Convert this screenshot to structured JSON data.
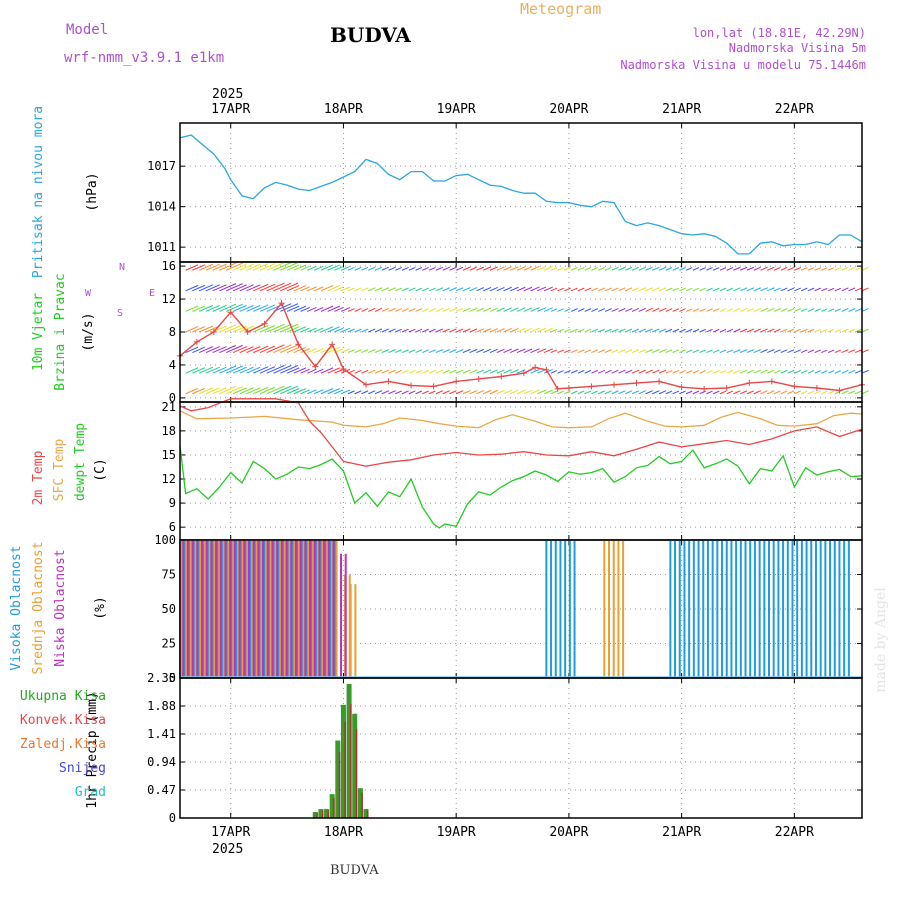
{
  "header": {
    "model_label": "Model",
    "model_name": "wrf-nmm_v3.9.1 e1km",
    "title": "BUDVA",
    "meteogram_label": "Meteogram",
    "lonlat": "lon,lat (18.81E, 42.29N)",
    "altitude": "Nadmorska Visina 5m",
    "model_altitude": "Nadmorska Visina u modelu 75.1446m"
  },
  "footer_label": "BUDVA",
  "made_by": "made by Angel",
  "year_label": "2025",
  "x_axis": {
    "ticks": [
      "17APR",
      "18APR",
      "19APR",
      "20APR",
      "21APR",
      "22APR"
    ],
    "range_days": [
      16.55,
      22.6
    ]
  },
  "colors": {
    "pressure": "#2aa6e6",
    "temp2m": "#e84848",
    "sfc_temp": "#e8a848",
    "dewpt": "#22cc22",
    "high_cloud": "#1f9be0",
    "mid_cloud": "#e8a030",
    "low_cloud": "#c030c0",
    "precip_total": "#3a9a2a",
    "precip_conv": "#b03030",
    "wind_speed": "#e84848"
  },
  "panels": {
    "pressure": {
      "labels": [
        "Pritisak na nivou mora",
        "(hPa)"
      ],
      "label_colors": [
        "#2aa6e6",
        "#000000"
      ],
      "yticks": [
        "1011",
        "1014",
        "1017"
      ]
    },
    "wind": {
      "labels": [
        "10m Vjetar",
        "Brzina i Pravac",
        "(m/s)"
      ],
      "label_colors": [
        "#22cc22",
        "#22cc22",
        "#000000"
      ],
      "yticks": [
        "0",
        "4",
        "8",
        "12",
        "16"
      ],
      "compass": {
        "n": "N",
        "s": "S",
        "e": "E",
        "w": "W"
      }
    },
    "temperature": {
      "labels": [
        "2m Temp",
        "SFC Temp",
        "dewpt Temp",
        "(C)"
      ],
      "label_colors": [
        "#e84848",
        "#e8a848",
        "#22cc22",
        "#000000"
      ],
      "yticks": [
        "6",
        "9",
        "12",
        "15",
        "18",
        "21"
      ]
    },
    "cloud": {
      "labels": [
        "Visoka Oblacnost",
        "Srednja Oblacnost",
        "Niska Oblacnost",
        "(%)"
      ],
      "label_colors": [
        "#1f9be0",
        "#e8a030",
        "#c030c0",
        "#000000"
      ],
      "yticks": [
        "0",
        "25",
        "50",
        "75",
        "100"
      ]
    },
    "precip": {
      "legend": [
        "Ukupna Kisa",
        "Konvek.Kisa",
        "Zaledj.Kisa",
        "Snijeg",
        "Grad"
      ],
      "legend_colors": [
        "#22aa22",
        "#e84848",
        "#e87830",
        "#4444dd",
        "#22c0c0"
      ],
      "ylabel": "1hr Precip (mm)",
      "yticks": [
        "0",
        "0.47",
        "0.94",
        "1.41",
        "1.88",
        "2.35"
      ]
    }
  },
  "chart_data": [
    {
      "type": "line",
      "title": "",
      "ylabel": "(hPa)",
      "ylim": [
        1009.9,
        1020.2
      ],
      "series": [
        {
          "name": "Pritisak na nivou mora",
          "x": [
            16.55,
            16.65,
            16.75,
            16.85,
            16.95,
            17.0,
            17.1,
            17.2,
            17.3,
            17.4,
            17.5,
            17.6,
            17.7,
            17.8,
            17.9,
            18.0,
            18.1,
            18.2,
            18.3,
            18.4,
            18.5,
            18.6,
            18.7,
            18.8,
            18.9,
            19.0,
            19.1,
            19.2,
            19.3,
            19.4,
            19.5,
            19.6,
            19.7,
            19.8,
            19.9,
            20.0,
            20.1,
            20.2,
            20.3,
            20.4,
            20.5,
            20.6,
            20.7,
            20.8,
            20.9,
            21.0,
            21.1,
            21.2,
            21.3,
            21.4,
            21.5,
            21.6,
            21.7,
            21.8,
            21.9,
            22.0,
            22.1,
            22.2,
            22.3,
            22.4,
            22.5,
            22.6
          ],
          "y": [
            1019.1,
            1019.3,
            1018.6,
            1017.9,
            1016.8,
            1016.0,
            1014.8,
            1014.6,
            1015.4,
            1015.8,
            1015.6,
            1015.3,
            1015.2,
            1015.5,
            1015.8,
            1016.2,
            1016.6,
            1017.5,
            1017.2,
            1016.4,
            1016.0,
            1016.6,
            1016.6,
            1015.9,
            1015.9,
            1016.3,
            1016.4,
            1016.0,
            1015.6,
            1015.5,
            1015.2,
            1015.0,
            1015.0,
            1014.4,
            1014.3,
            1014.3,
            1014.1,
            1014.0,
            1014.4,
            1014.3,
            1012.9,
            1012.6,
            1012.8,
            1012.6,
            1012.3,
            1012.0,
            1011.9,
            1012.0,
            1011.8,
            1011.3,
            1010.5,
            1010.5,
            1011.3,
            1011.4,
            1011.1,
            1011.2,
            1011.2,
            1011.4,
            1011.2,
            1011.9,
            1011.9,
            1011.4
          ]
        }
      ]
    },
    {
      "type": "line",
      "title": "",
      "ylabel": "(m/s)",
      "ylim": [
        -0.5,
        16.5
      ],
      "series": [
        {
          "name": "10m Vjetar",
          "x": [
            16.55,
            16.7,
            16.85,
            17.0,
            17.15,
            17.3,
            17.45,
            17.6,
            17.75,
            17.9,
            18.0,
            18.2,
            18.4,
            18.6,
            18.8,
            19.0,
            19.2,
            19.4,
            19.6,
            19.7,
            19.8,
            19.9,
            20.0,
            20.2,
            20.4,
            20.6,
            20.8,
            21.0,
            21.2,
            21.4,
            21.6,
            21.8,
            22.0,
            22.2,
            22.4,
            22.6
          ],
          "y": [
            5.1,
            6.8,
            8.0,
            10.4,
            8.0,
            9.0,
            11.5,
            6.5,
            3.8,
            6.5,
            3.5,
            1.6,
            2.0,
            1.5,
            1.4,
            2.0,
            2.3,
            2.6,
            3.0,
            3.7,
            3.4,
            1.1,
            1.2,
            1.4,
            1.6,
            1.8,
            2.0,
            1.3,
            1.1,
            1.2,
            1.8,
            2.0,
            1.4,
            1.2,
            0.9,
            1.6
          ]
        }
      ]
    },
    {
      "type": "line",
      "title": "",
      "ylabel": "(C)",
      "ylim": [
        4.4,
        21.6
      ],
      "series": [
        {
          "name": "2m Temp",
          "x": [
            16.55,
            16.65,
            16.8,
            17.0,
            17.2,
            17.4,
            17.6,
            17.7,
            17.8,
            17.9,
            18.0,
            18.2,
            18.4,
            18.6,
            18.8,
            19.0,
            19.2,
            19.4,
            19.6,
            19.8,
            20.0,
            20.2,
            20.4,
            20.6,
            20.8,
            21.0,
            21.2,
            21.4,
            21.6,
            21.8,
            22.0,
            22.2,
            22.4,
            22.6
          ],
          "y": [
            21.1,
            20.5,
            20.9,
            22.0,
            22.0,
            22.0,
            21.5,
            19.2,
            17.8,
            16.0,
            14.2,
            13.6,
            14.1,
            14.4,
            15.0,
            15.3,
            15.0,
            15.1,
            15.4,
            15.0,
            14.9,
            15.4,
            14.9,
            15.7,
            16.6,
            16.0,
            16.4,
            16.8,
            16.3,
            17.0,
            18.0,
            18.5,
            17.3,
            18.2
          ]
        },
        {
          "name": "SFC Temp",
          "x": [
            16.55,
            16.7,
            17.0,
            17.3,
            17.6,
            17.9,
            18.0,
            18.2,
            18.35,
            18.5,
            18.7,
            18.85,
            19.0,
            19.2,
            19.35,
            19.5,
            19.7,
            19.85,
            20.0,
            20.2,
            20.35,
            20.5,
            20.7,
            20.85,
            21.0,
            21.2,
            21.35,
            21.5,
            21.7,
            21.85,
            22.0,
            22.2,
            22.35,
            22.5,
            22.6
          ],
          "y": [
            20.5,
            19.5,
            19.6,
            19.8,
            19.4,
            19.1,
            18.7,
            18.5,
            18.9,
            19.6,
            19.3,
            18.9,
            18.6,
            18.4,
            19.4,
            20.0,
            19.2,
            18.5,
            18.4,
            18.5,
            19.5,
            20.2,
            19.2,
            18.6,
            18.5,
            18.7,
            19.7,
            20.3,
            19.5,
            18.7,
            18.6,
            18.9,
            19.9,
            20.2,
            20.1
          ]
        },
        {
          "name": "dewpt Temp",
          "x": [
            16.55,
            16.6,
            16.7,
            16.8,
            16.9,
            17.0,
            17.1,
            17.2,
            17.3,
            17.4,
            17.5,
            17.6,
            17.7,
            17.8,
            17.9,
            18.0,
            18.1,
            18.2,
            18.3,
            18.4,
            18.5,
            18.6,
            18.7,
            18.8,
            18.85,
            18.9,
            19.0,
            19.1,
            19.2,
            19.3,
            19.4,
            19.5,
            19.6,
            19.7,
            19.8,
            19.9,
            20.0,
            20.1,
            20.2,
            20.3,
            20.4,
            20.5,
            20.6,
            20.7,
            20.8,
            20.9,
            21.0,
            21.1,
            21.2,
            21.3,
            21.4,
            21.5,
            21.6,
            21.7,
            21.8,
            21.9,
            22.0,
            22.1,
            22.2,
            22.3,
            22.4,
            22.5,
            22.6
          ],
          "y": [
            16.2,
            10.2,
            10.8,
            9.5,
            11.0,
            12.8,
            11.5,
            14.2,
            13.3,
            12.0,
            12.6,
            13.5,
            13.3,
            13.8,
            14.5,
            13.0,
            9.0,
            10.3,
            8.6,
            10.4,
            9.8,
            12.0,
            8.5,
            6.4,
            5.9,
            6.4,
            6.1,
            8.9,
            10.4,
            10.0,
            11.0,
            11.8,
            12.3,
            13.0,
            12.5,
            11.7,
            12.9,
            12.6,
            12.8,
            13.3,
            11.6,
            12.3,
            13.4,
            13.7,
            14.8,
            13.9,
            14.2,
            15.6,
            13.4,
            13.9,
            14.5,
            13.6,
            11.4,
            13.3,
            13.0,
            14.9,
            11.0,
            13.4,
            12.5,
            12.9,
            13.2,
            12.3,
            12.4
          ]
        }
      ]
    },
    {
      "type": "bar",
      "title": "",
      "ylabel": "(%)",
      "ylim": [
        0,
        100
      ],
      "series": [
        {
          "name": "Visoka Oblacnost",
          "periods": [
            [
              16.55,
              17.95,
              100
            ],
            [
              19.8,
              20.05,
              100
            ],
            [
              20.9,
              22.5,
              100
            ]
          ]
        },
        {
          "name": "Srednja Oblacnost",
          "periods": [
            [
              16.55,
              17.95,
              100
            ],
            [
              18.0,
              18.05,
              75
            ],
            [
              18.05,
              18.1,
              68
            ],
            [
              20.3,
              20.5,
              100
            ]
          ]
        },
        {
          "name": "Niska Oblacnost",
          "periods": [
            [
              16.55,
              17.9,
              100
            ],
            [
              17.95,
              18.0,
              90
            ]
          ]
        }
      ]
    },
    {
      "type": "bar",
      "title": "",
      "ylabel": "1hr Precip (mm)",
      "ylim": [
        0,
        2.35
      ],
      "series": [
        {
          "name": "Ukupna Kisa",
          "x": [
            17.75,
            17.8,
            17.85,
            17.9,
            17.95,
            18.0,
            18.05,
            18.1,
            18.15,
            18.2
          ],
          "values": [
            0.1,
            0.15,
            0.15,
            0.4,
            1.3,
            1.9,
            2.25,
            1.75,
            0.5,
            0.15
          ]
        }
      ]
    }
  ]
}
